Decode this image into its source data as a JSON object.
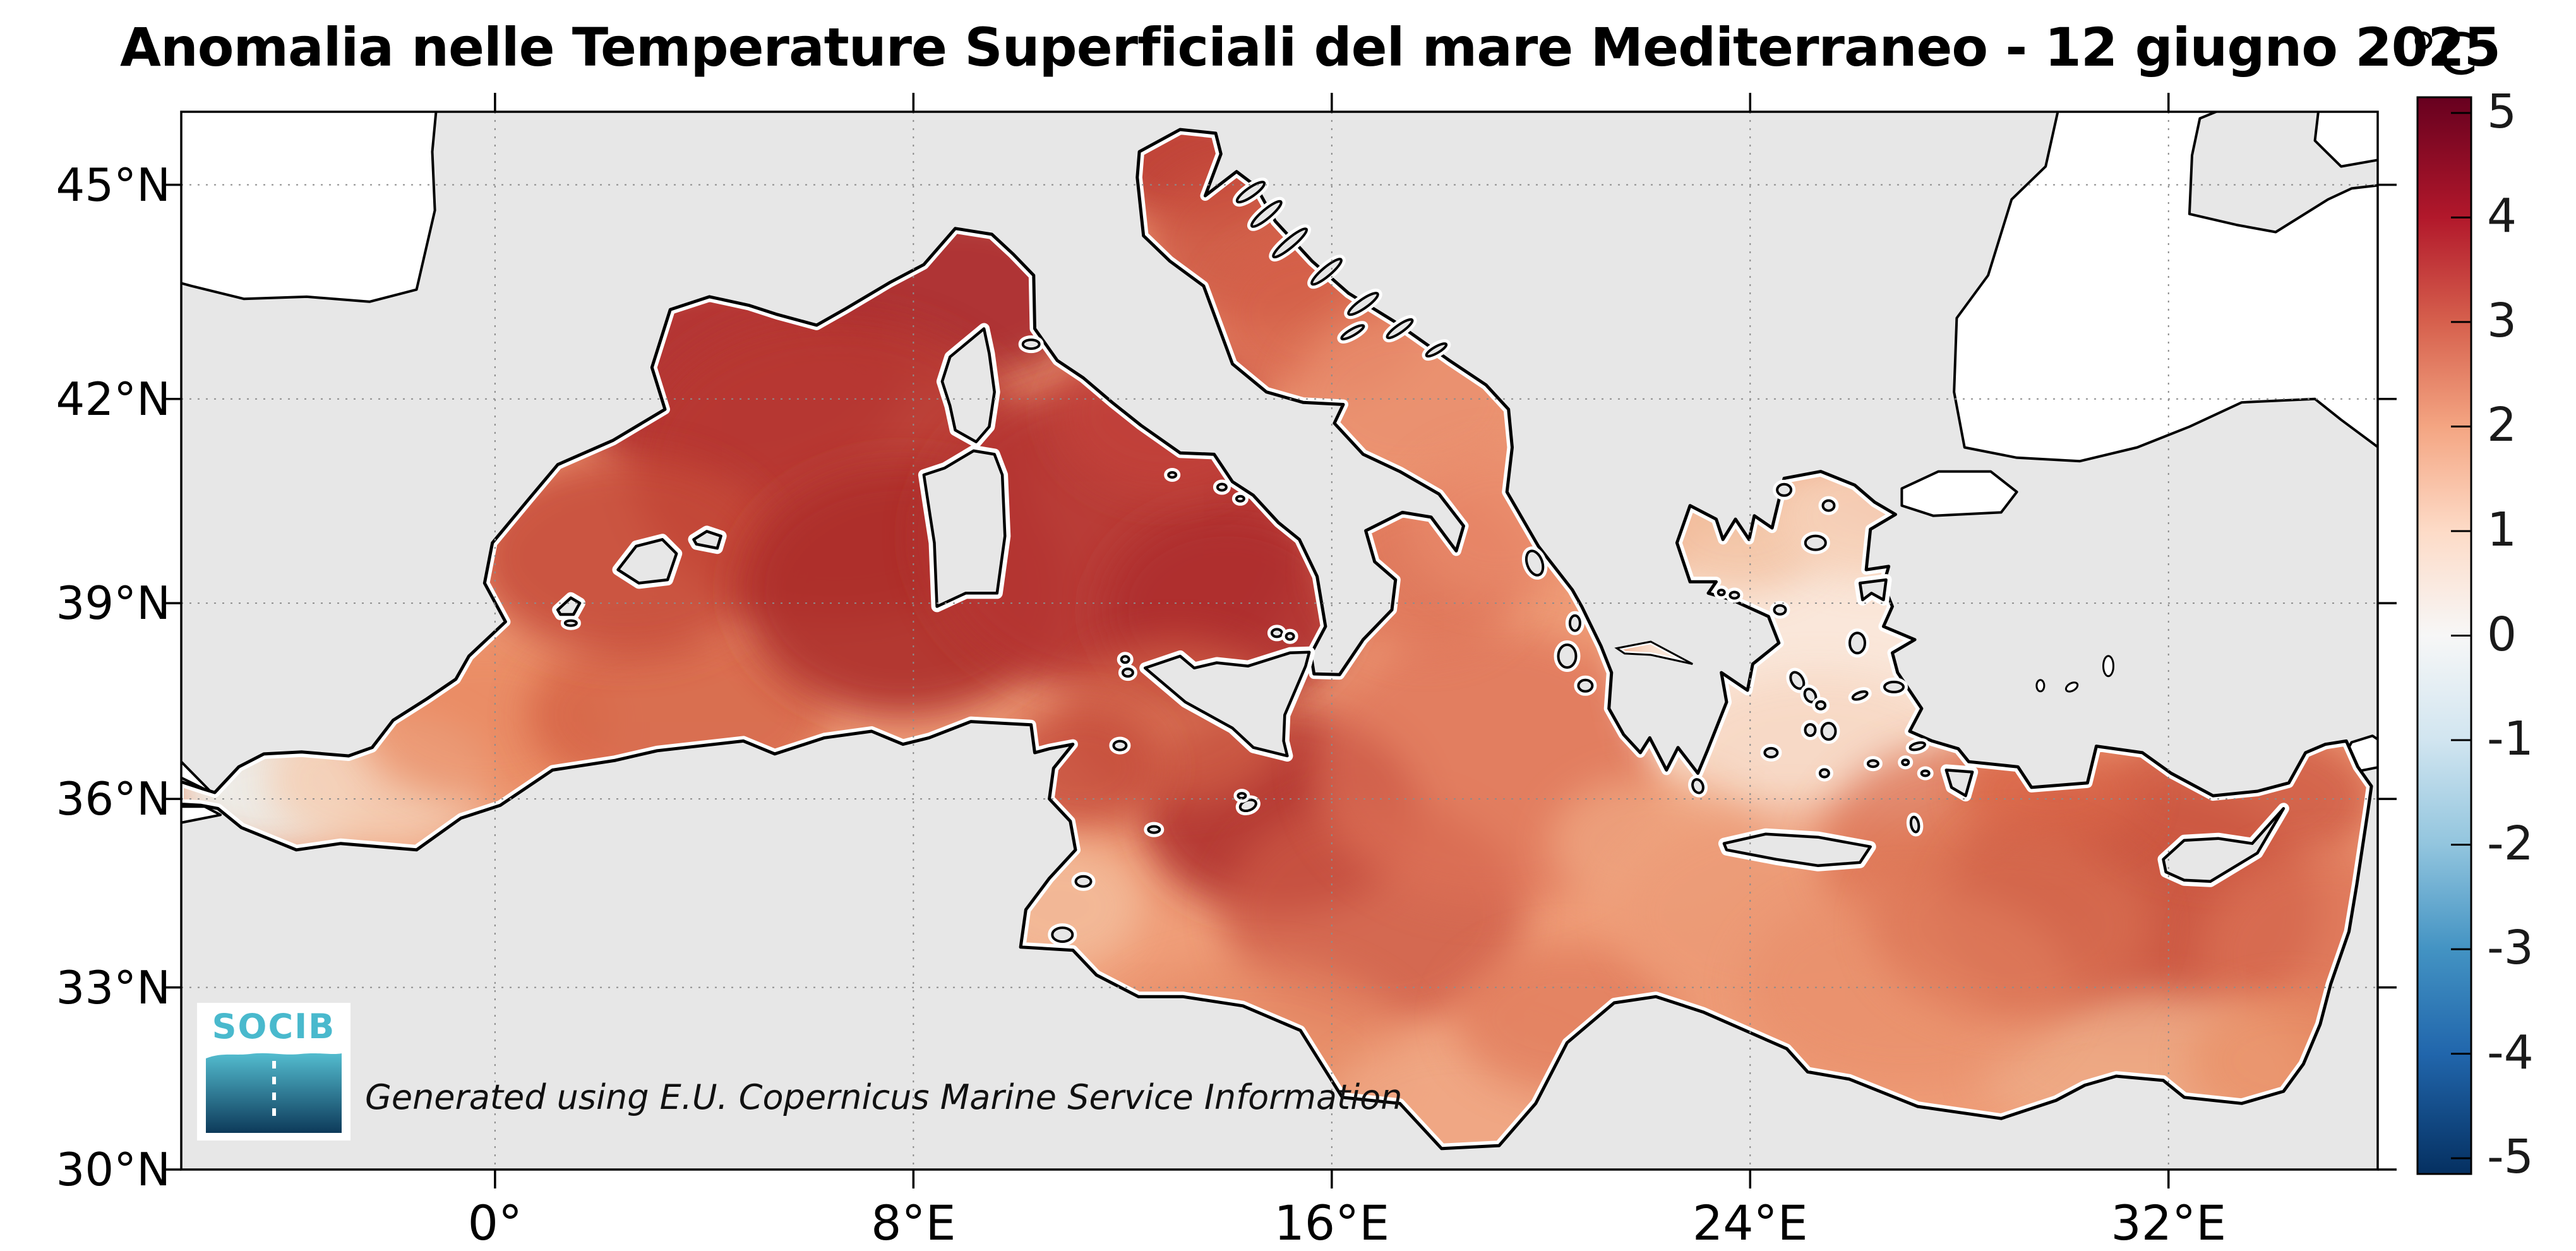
{
  "chart_data": {
    "type": "heatmap",
    "title": "Anomalia nelle Temperature Superficiali del mare Mediterraneo - 12 giugno 2025",
    "unit_label": "°C",
    "projection": "mercator",
    "extent": {
      "lon_min": -6,
      "lon_max": 36,
      "lat_min": 30,
      "lat_max": 46
    },
    "x_axis": {
      "ticks": [
        {
          "value": 0,
          "label": "0°"
        },
        {
          "value": 8,
          "label": "8°E"
        },
        {
          "value": 16,
          "label": "16°E"
        },
        {
          "value": 24,
          "label": "24°E"
        },
        {
          "value": 32,
          "label": "32°E"
        }
      ]
    },
    "y_axis": {
      "ticks": [
        {
          "value": 45,
          "label": "45°N"
        },
        {
          "value": 42,
          "label": "42°N"
        },
        {
          "value": 39,
          "label": "39°N"
        },
        {
          "value": 36,
          "label": "36°N"
        },
        {
          "value": 33,
          "label": "33°N"
        },
        {
          "value": 30,
          "label": "30°N"
        }
      ]
    },
    "colorbar": {
      "unit": "°C",
      "colormap": "RdBu_r",
      "vmin": -5,
      "vmax": 5,
      "ticks": [
        {
          "value": 5,
          "label": "5"
        },
        {
          "value": 4,
          "label": "4"
        },
        {
          "value": 3,
          "label": "3"
        },
        {
          "value": 2,
          "label": "2"
        },
        {
          "value": 1,
          "label": "1"
        },
        {
          "value": 0,
          "label": "0"
        },
        {
          "value": -1,
          "label": "-1"
        },
        {
          "value": -2,
          "label": "-2"
        },
        {
          "value": -3,
          "label": "-3"
        },
        {
          "value": -4,
          "label": "-4"
        },
        {
          "value": -5,
          "label": "-5"
        }
      ],
      "stops": [
        [
          "#67001f",
          0.0
        ],
        [
          "#b2182b",
          0.1117
        ],
        [
          "#d6604d",
          0.2087
        ],
        [
          "#f4a582",
          0.3058
        ],
        [
          "#fddbc7",
          0.4029
        ],
        [
          "#f7f7f7",
          0.5
        ],
        [
          "#d1e5f0",
          0.5971
        ],
        [
          "#92c5de",
          0.6942
        ],
        [
          "#4393c3",
          0.7913
        ],
        [
          "#2166ac",
          0.8883
        ],
        [
          "#053061",
          1.0
        ]
      ]
    },
    "anomaly_blobs": [
      [
        -4.3,
        36.15,
        150,
        90,
        "#edf1ee",
        0.95
      ],
      [
        -2.2,
        36.3,
        180,
        110,
        "#f4cfb5",
        0.9
      ],
      [
        -0.2,
        37.2,
        200,
        130,
        "#e8875f",
        0.7
      ],
      [
        3.5,
        37.3,
        240,
        140,
        "#d15c41",
        0.7
      ],
      [
        4.5,
        42.3,
        280,
        170,
        "#b23130",
        0.95
      ],
      [
        8.8,
        43.5,
        230,
        140,
        "#a82a2d",
        0.9
      ],
      [
        6.5,
        41.0,
        320,
        240,
        "#b73732",
        0.9
      ],
      [
        2.5,
        39.7,
        240,
        160,
        "#c54a39",
        0.85
      ],
      [
        7.8,
        39.2,
        260,
        200,
        "#ad2d2c",
        0.9
      ],
      [
        11.8,
        40.0,
        300,
        250,
        "#b53431",
        0.92
      ],
      [
        14.0,
        38.9,
        200,
        160,
        "#ae2e2d",
        0.9
      ],
      [
        12.8,
        41.8,
        170,
        130,
        "#c2423a",
        0.8
      ],
      [
        15.0,
        35.8,
        220,
        160,
        "#b0302e",
        0.9
      ],
      [
        13.0,
        37.2,
        180,
        130,
        "#d06046",
        0.75
      ],
      [
        11.2,
        36.5,
        130,
        100,
        "#c54c3a",
        0.8
      ],
      [
        10.8,
        34.3,
        130,
        100,
        "#f3bd9c",
        0.85
      ],
      [
        16.8,
        34.2,
        240,
        180,
        "#cc5844",
        0.75
      ],
      [
        19.0,
        36.5,
        280,
        220,
        "#dd7156",
        0.7
      ],
      [
        17.8,
        39.5,
        160,
        130,
        "#db6d52",
        0.7
      ],
      [
        14.5,
        31.8,
        260,
        160,
        "#e68a66",
        0.7
      ],
      [
        18.5,
        30.9,
        220,
        130,
        "#f0ab88",
        0.75
      ],
      [
        20.5,
        32.5,
        180,
        120,
        "#e0795a",
        0.7
      ],
      [
        13.3,
        45.3,
        150,
        100,
        "#bc3b33",
        0.88
      ],
      [
        14.5,
        44.2,
        170,
        130,
        "#cb5341",
        0.8
      ],
      [
        15.8,
        43.2,
        170,
        130,
        "#d5604a",
        0.75
      ],
      [
        17.5,
        42.0,
        190,
        140,
        "#e98f6e",
        0.8
      ],
      [
        19.2,
        40.2,
        150,
        120,
        "#e8896a",
        0.75
      ],
      [
        24.9,
        38.0,
        270,
        250,
        "#faeadd",
        0.97
      ],
      [
        25.3,
        36.6,
        240,
        140,
        "#f7d8c4",
        0.9
      ],
      [
        23.8,
        40.2,
        150,
        110,
        "#f3c3a4",
        0.85
      ],
      [
        26.3,
        40.3,
        150,
        100,
        "#f6d0b8",
        0.9
      ],
      [
        22.2,
        35.3,
        170,
        110,
        "#efa681",
        0.8
      ],
      [
        24.8,
        34.2,
        280,
        170,
        "#ec9a76",
        0.7
      ],
      [
        28.2,
        35.2,
        240,
        170,
        "#db6f51",
        0.75
      ],
      [
        31.3,
        34.2,
        300,
        200,
        "#c64f3b",
        0.85
      ],
      [
        33.3,
        36.0,
        220,
        120,
        "#cd5943",
        0.8
      ],
      [
        35.0,
        33.5,
        200,
        170,
        "#db7154",
        0.75
      ],
      [
        31.5,
        31.7,
        260,
        120,
        "#eeab87",
        0.85
      ],
      [
        34.3,
        31.8,
        160,
        110,
        "#e89067",
        0.75
      ],
      [
        27.0,
        33.0,
        260,
        160,
        "#e88e6a",
        0.65
      ],
      [
        29.8,
        36.1,
        140,
        90,
        "#d96648",
        0.7
      ],
      [
        29.0,
        34.0,
        220,
        150,
        "#db7355",
        0.6
      ]
    ],
    "regions_estimated_anomaly_c": {
      "alboran_sea": 0.8,
      "balearic_sea": 3.9,
      "gulf_of_lion": 4.1,
      "ligurian_sea": 4.2,
      "tyrrhenian_sea": 3.9,
      "algerian_basin": 3.0,
      "adriatic_north": 3.2,
      "adriatic_south": 2.3,
      "ionian_sea": 2.5,
      "strait_of_sicily": 2.8,
      "aegean_sea": 0.5,
      "levantine_basin": 2.8,
      "south_of_anatolia_west_of_cyprus": 3.4,
      "gulf_of_gabes": 1.3,
      "gulf_of_sirte": 2.2,
      "egyptian_coast": 1.6
    },
    "no_data_regions": [
      "Atlantic / Bay of Biscay",
      "Black Sea",
      "Sea of Azov",
      "Sea of Marmara",
      "Gulf of Iskenderun"
    ],
    "attribution": "Generated using E.U. Copernicus Marine Service Information",
    "logo_text": "SOCIB"
  },
  "style_colors": {
    "land": "#e7e7e7",
    "no_data_sea": "#ffffff",
    "coastline": "#000000",
    "sea_base": "#ef9d78",
    "grid": "#8c8c8c",
    "logo_cyan": "#49b9cd",
    "logo_water_top": "#53bccf",
    "logo_water_bottom": "#0d3a5a"
  }
}
